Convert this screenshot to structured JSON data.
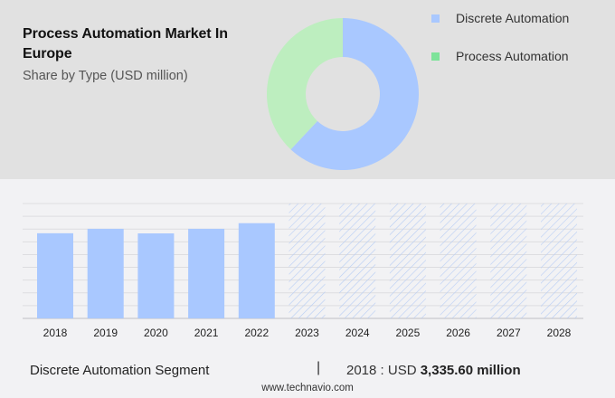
{
  "header": {
    "title": "Process Automation Market In Europe",
    "subtitle": "Share by Type (USD million)"
  },
  "legend": [
    {
      "label": "Discrete Automation",
      "color": "#a9c8ff"
    },
    {
      "label": "Process Automation",
      "color": "#7ee39a"
    }
  ],
  "footer": {
    "segment": "Discrete Automation Segment",
    "separator": "|",
    "value_prefix": "2018 : USD ",
    "value_bold": "3,335.60 million",
    "url": "www.technavio.com"
  },
  "colors": {
    "discrete": "#a9c8ff",
    "process_donut": "#bdeebf",
    "process_legend": "#7ee39a",
    "forecast_hatch": "#b7cdf5",
    "grid": "#dddde0",
    "panel_bg": "#e1e1e1",
    "page_bg": "#f2f2f4"
  },
  "chart_data": [
    {
      "type": "pie",
      "subtype": "donut",
      "title": "Process Automation Market In Europe",
      "subtitle": "Share by Type (USD million)",
      "labels": [
        "Discrete Automation",
        "Process Automation"
      ],
      "values": [
        62,
        38
      ],
      "unit": "approx. % share",
      "legend_position": "right"
    },
    {
      "type": "bar",
      "categories": [
        "2018",
        "2019",
        "2020",
        "2021",
        "2022",
        "2023",
        "2024",
        "2025",
        "2026",
        "2027",
        "2028"
      ],
      "series": [
        {
          "name": "Discrete Automation",
          "values": [
            3335.6,
            3510,
            3330,
            3510,
            3730,
            null,
            null,
            null,
            null,
            null,
            null
          ]
        }
      ],
      "forecast_categories": [
        "2023",
        "2024",
        "2025",
        "2026",
        "2027",
        "2028"
      ],
      "annotation": "2018 : USD 3,335.60 million",
      "xlabel": "",
      "ylabel": "",
      "ylim": [
        0,
        4500
      ],
      "grid": true,
      "y_ticks_visible": false
    }
  ]
}
